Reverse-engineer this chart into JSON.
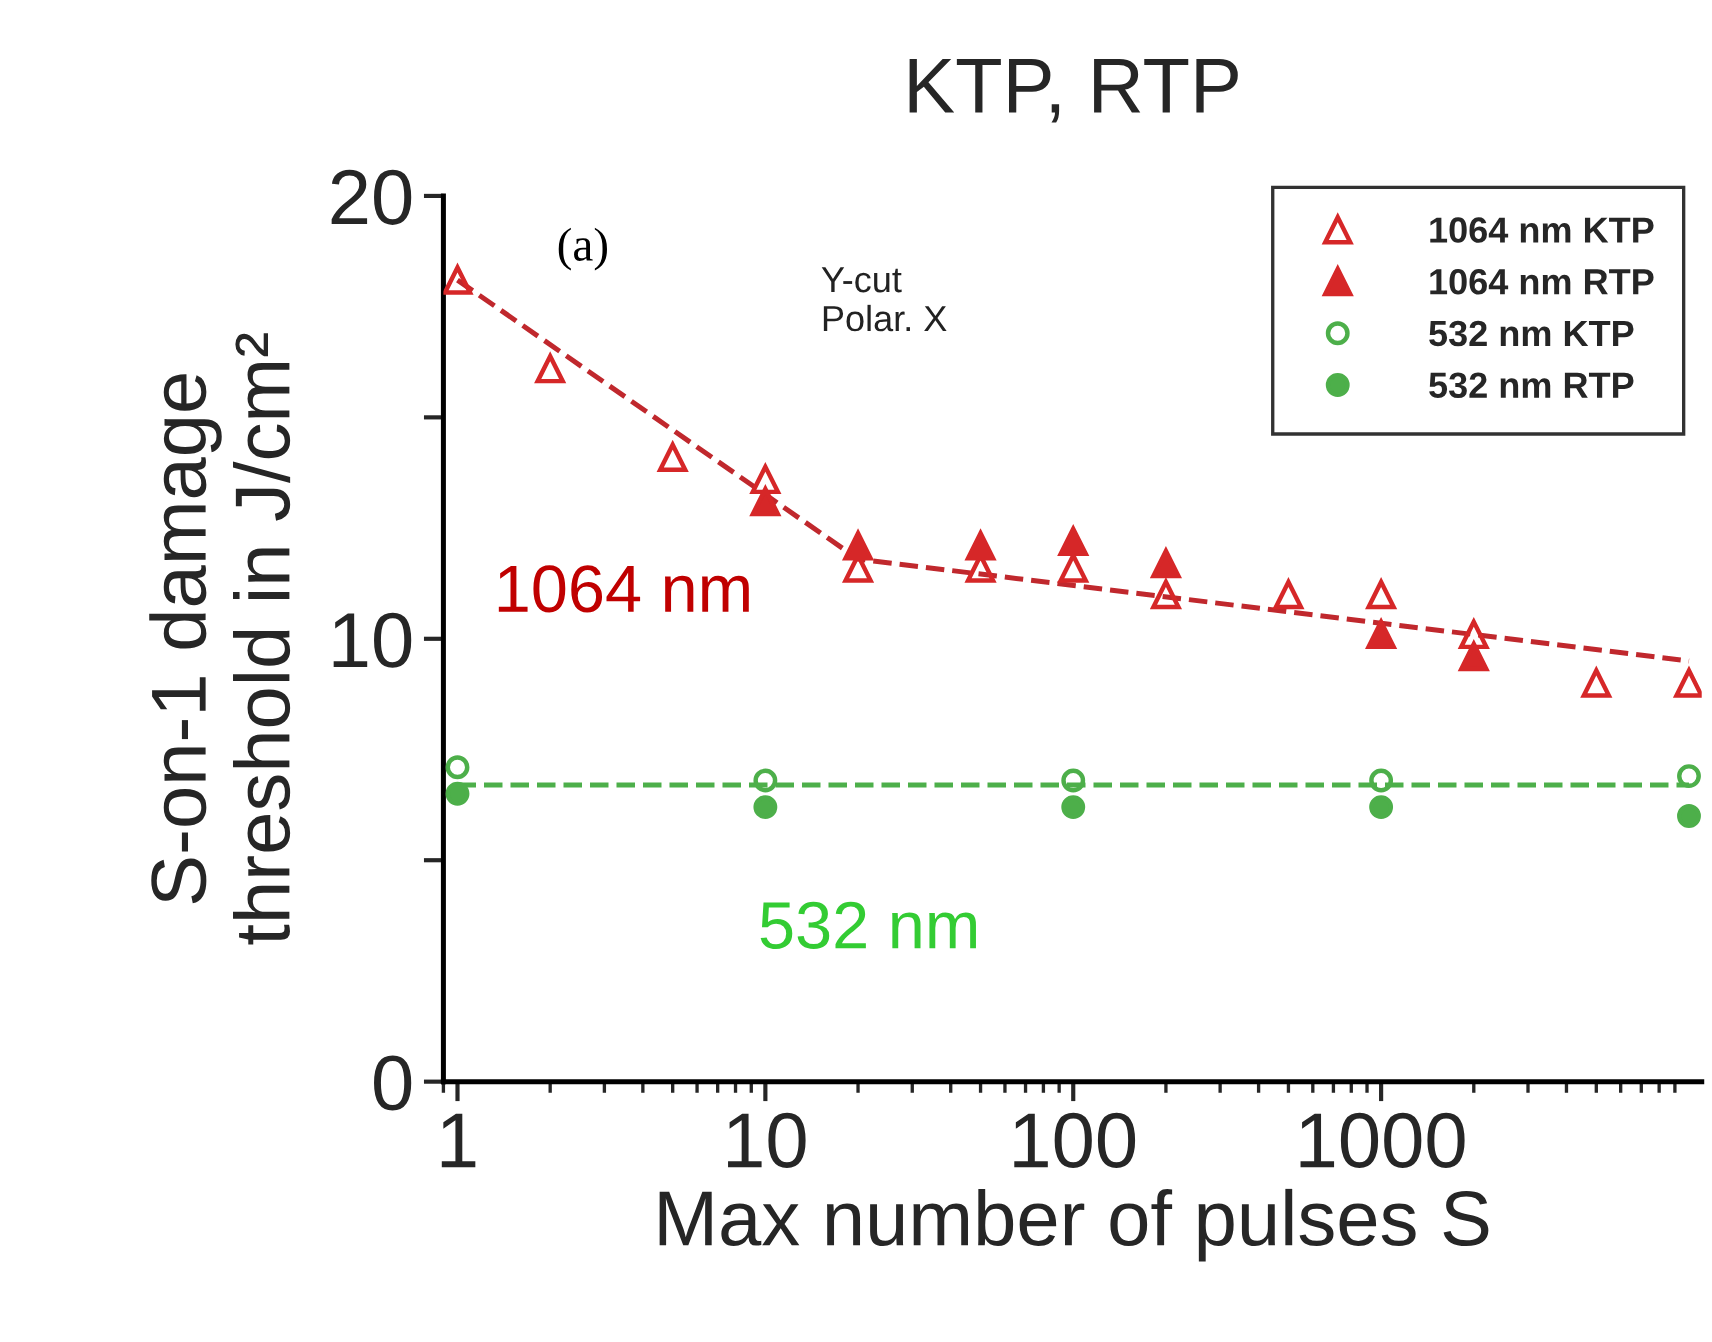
{
  "chart_data": {
    "type": "scatter",
    "title": "KTP, RTP",
    "xlabel": "Max number of pulses S",
    "ylabel": "S-on-1 damage\nthreshold in J/cm²",
    "log": "x",
    "xlim": [
      0.9,
      11000
    ],
    "xticks": [
      1,
      10,
      100,
      1000
    ],
    "ylim": [
      0,
      20
    ],
    "yticks": [
      0,
      {
        "value": 5,
        "label": null
      },
      10,
      {
        "value": 15,
        "label": null
      },
      20
    ],
    "grid": false,
    "legend": "top right",
    "annotations": [
      "(a)",
      "Y-cut\nPolar. X",
      "1064 nm",
      "532 nm"
    ],
    "series": [
      {
        "name": "1064 nm KTP",
        "color": "#d62728",
        "marker": "triangle",
        "x": [
          1,
          2,
          5,
          10,
          20,
          50,
          100,
          200,
          500,
          1000,
          2000,
          5000,
          10000
        ],
        "values": [
          18.1,
          16.1,
          14.1,
          13.6,
          11.6,
          11.6,
          11.6,
          11.0,
          11.0,
          11.0,
          10.1,
          9.0,
          9.0
        ]
      },
      {
        "name": "1064 nm RTP",
        "color": "#d62728",
        "marker": "triangle",
        "x": [
          10,
          20,
          50,
          100,
          200,
          1000,
          2000
        ],
        "values": [
          13.1,
          12.1,
          12.1,
          12.2,
          11.7,
          10.1,
          9.6
        ]
      },
      {
        "name": "532 nm KTP",
        "color": "#4daf4a",
        "marker": "circle",
        "x": [
          1,
          10,
          100,
          1000,
          10000
        ],
        "values": [
          7.1,
          6.8,
          6.8,
          6.8,
          6.9
        ]
      },
      {
        "name": "532 nm RTP",
        "color": "#4daf4a",
        "marker": "circle",
        "x": [
          1,
          10,
          100,
          1000,
          10000
        ],
        "values": [
          6.5,
          6.2,
          6.2,
          6.2,
          6.0
        ]
      },
      {
        "type": "line",
        "color": "#c0282d",
        "line_style": "dashed",
        "marker": "none",
        "x": [
          1,
          20,
          10000
        ],
        "values": [
          18.1,
          11.8,
          9.5
        ]
      },
      {
        "type": "line",
        "color": "#4daf4a",
        "line_style": "dashed",
        "marker": "none",
        "x": [
          1,
          10000
        ],
        "values": [
          6.7,
          6.7
        ]
      }
    ]
  }
}
